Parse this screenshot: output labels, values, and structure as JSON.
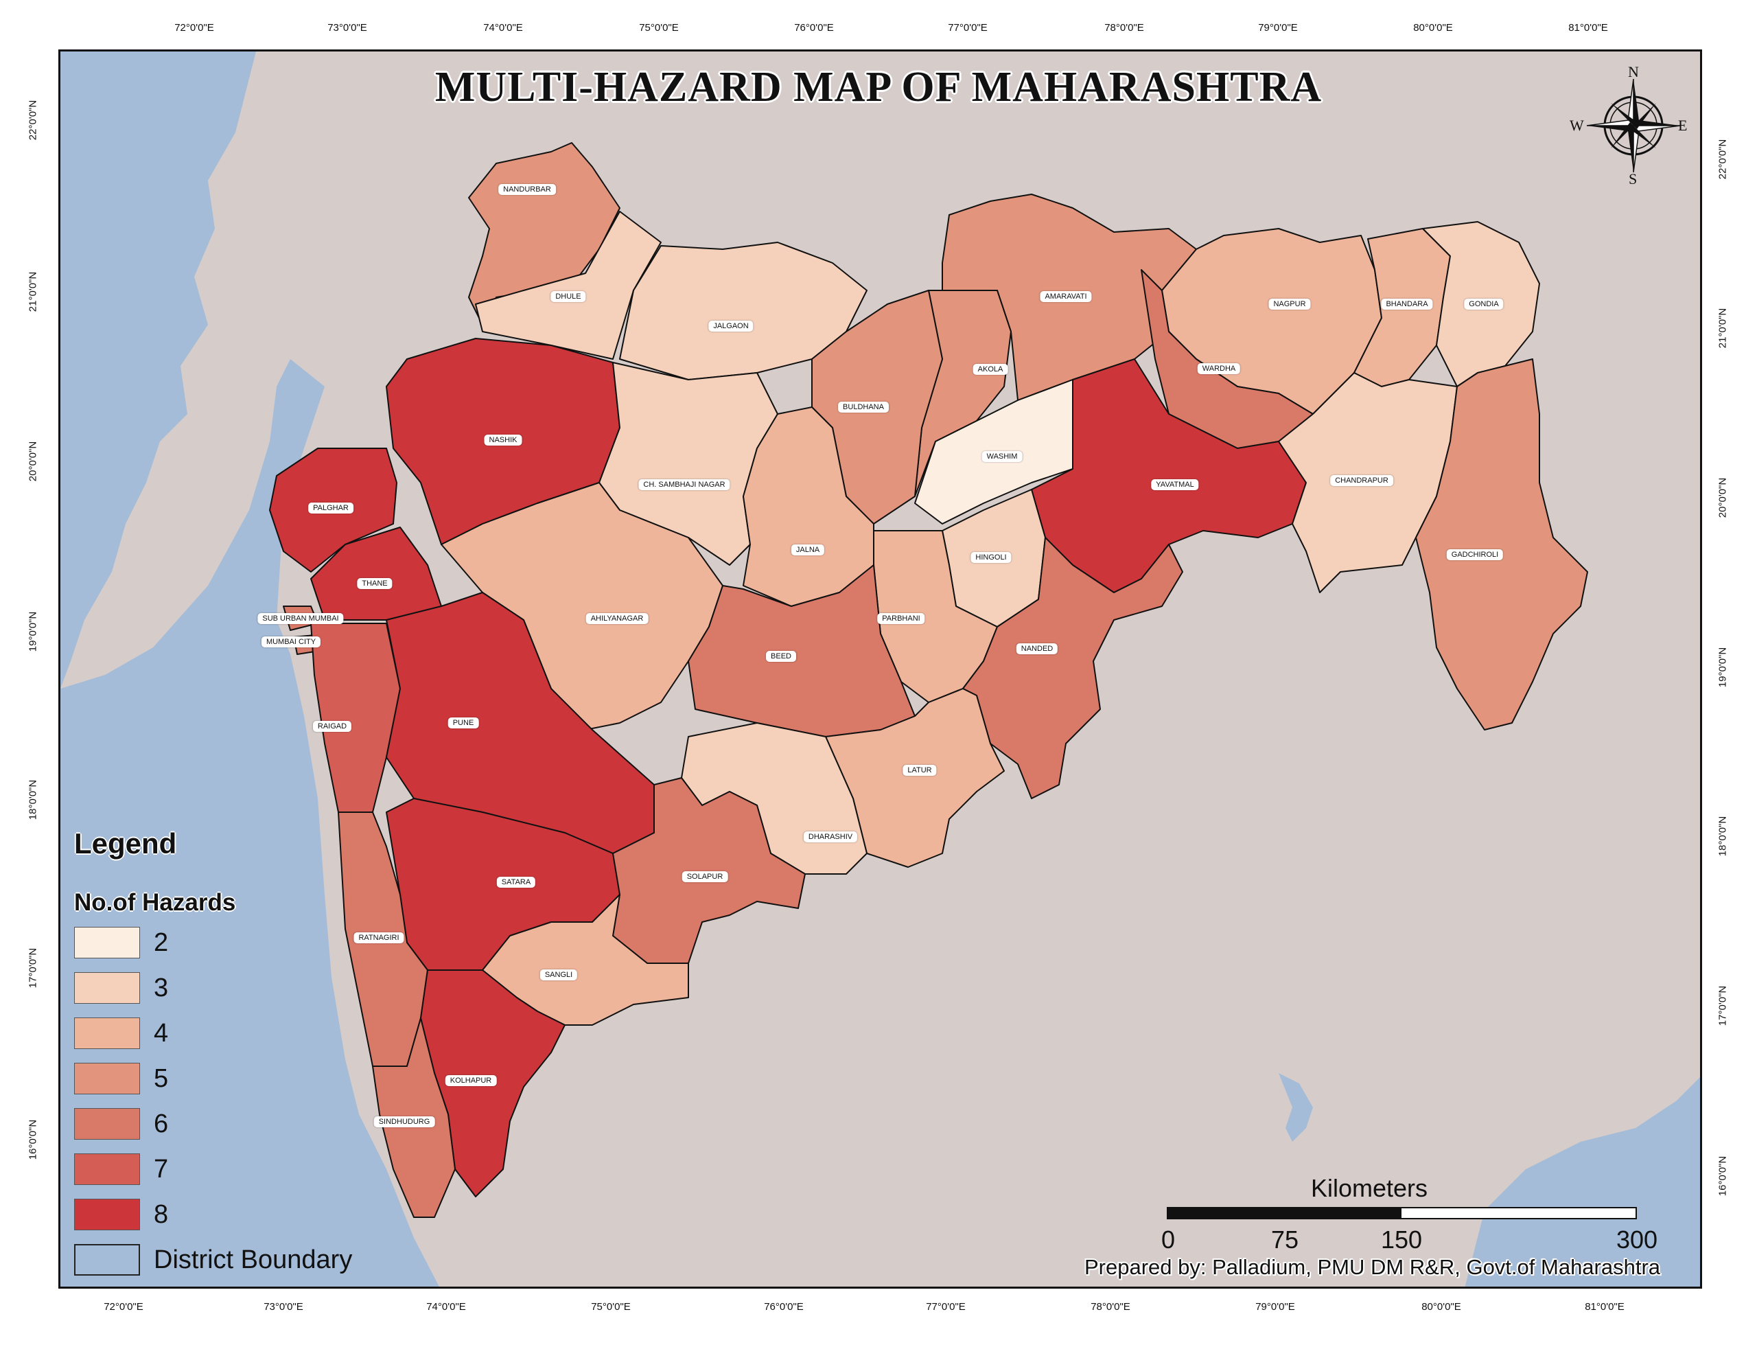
{
  "title": "MULTI-HAZARD MAP OF MAHARASHTRA",
  "axes": {
    "top_ticks": [
      "72°0'0\"E",
      "73°0'0\"E",
      "74°0'0\"E",
      "75°0'0\"E",
      "76°0'0\"E",
      "77°0'0\"E",
      "78°0'0\"E",
      "79°0'0\"E",
      "80°0'0\"E",
      "81°0'0\"E"
    ],
    "bottom_ticks": [
      "72°0'0\"E",
      "73°0'0\"E",
      "74°0'0\"E",
      "75°0'0\"E",
      "76°0'0\"E",
      "77°0'0\"E",
      "78°0'0\"E",
      "79°0'0\"E",
      "80°0'0\"E",
      "81°0'0\"E"
    ],
    "left_ticks": [
      "22°0'0\"N",
      "21°0'0\"N",
      "20°0'0\"N",
      "19°0'0\"N",
      "18°0'0\"N",
      "17°0'0\"N",
      "16°0'0\"N"
    ],
    "right_ticks": [
      "22°0'0\"N",
      "21°0'0\"N",
      "20°0'0\"N",
      "19°0'0\"N",
      "18°0'0\"N",
      "17°0'0\"N",
      "16°0'0\"N"
    ]
  },
  "compass": {
    "n": "N",
    "s": "S",
    "e": "E",
    "w": "W"
  },
  "legend": {
    "title": "Legend",
    "subtitle": "No.of Hazards",
    "items": [
      {
        "label": "2",
        "color": "#fdeee2"
      },
      {
        "label": "3",
        "color": "#f5d1bb"
      },
      {
        "label": "4",
        "color": "#eeb59b"
      },
      {
        "label": "5",
        "color": "#e2957c"
      },
      {
        "label": "6",
        "color": "#d97968"
      },
      {
        "label": "7",
        "color": "#d45e55"
      },
      {
        "label": "8",
        "color": "#cc363a"
      }
    ],
    "boundary_label": "District Boundary",
    "boundary_color": "#a4bcd8"
  },
  "scale": {
    "title": "Kilometers",
    "labels": [
      "0",
      "75",
      "150",
      "300"
    ]
  },
  "credit": "Prepared by: Palladium, PMU DM R&R, Govt.of Maharashtra",
  "districts": [
    {
      "name": "NANDURBAR",
      "hazards": 5
    },
    {
      "name": "DHULE",
      "hazards": 3
    },
    {
      "name": "JALGAON",
      "hazards": 3
    },
    {
      "name": "AMARAVATI",
      "hazards": 5
    },
    {
      "name": "NAGPUR",
      "hazards": 4
    },
    {
      "name": "BHANDARA",
      "hazards": 4
    },
    {
      "name": "GONDIA",
      "hazards": 3
    },
    {
      "name": "AKOLA",
      "hazards": 5
    },
    {
      "name": "WARDHA",
      "hazards": 6
    },
    {
      "name": "BULDHANA",
      "hazards": 5
    },
    {
      "name": "NASHIK",
      "hazards": 8
    },
    {
      "name": "WASHIM",
      "hazards": 2
    },
    {
      "name": "YAVATMAL",
      "hazards": 8
    },
    {
      "name": "CHANDRAPUR",
      "hazards": 3
    },
    {
      "name": "CH. SAMBHAJI NAGAR",
      "hazards": 3
    },
    {
      "name": "PALGHAR",
      "hazards": 8
    },
    {
      "name": "JALNA",
      "hazards": 4
    },
    {
      "name": "HINGOLI",
      "hazards": 3
    },
    {
      "name": "GADCHIROLI",
      "hazards": 5
    },
    {
      "name": "THANE",
      "hazards": 8
    },
    {
      "name": "SUB URBAN MUMBAI",
      "hazards": 6
    },
    {
      "name": "AHILYANAGAR",
      "hazards": 4
    },
    {
      "name": "PARBHANI",
      "hazards": 4
    },
    {
      "name": "MUMBAI CITY",
      "hazards": 6
    },
    {
      "name": "BEED",
      "hazards": 6
    },
    {
      "name": "NANDED",
      "hazards": 6
    },
    {
      "name": "RAIGAD",
      "hazards": 7
    },
    {
      "name": "PUNE",
      "hazards": 8
    },
    {
      "name": "LATUR",
      "hazards": 4
    },
    {
      "name": "DHARASHIV",
      "hazards": 3
    },
    {
      "name": "SATARA",
      "hazards": 8
    },
    {
      "name": "SOLAPUR",
      "hazards": 6
    },
    {
      "name": "RATNAGIRI",
      "hazards": 6
    },
    {
      "name": "SANGLI",
      "hazards": 4
    },
    {
      "name": "KOLHAPUR",
      "hazards": 8
    },
    {
      "name": "SINDHUDURG",
      "hazards": 6
    }
  ]
}
